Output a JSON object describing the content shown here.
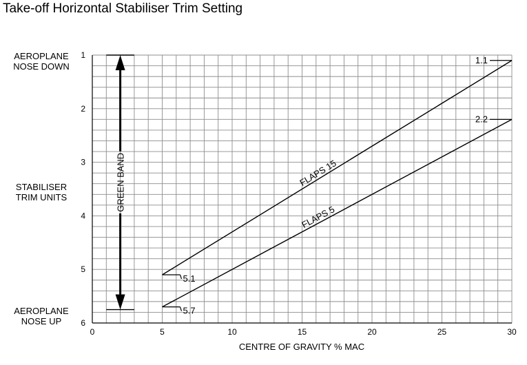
{
  "chart_data": {
    "type": "line",
    "title": "Take-off Horizontal Stabiliser Trim Setting",
    "xlabel": "CENTRE OF GRAVITY  % MAC",
    "ylabel_lines": [
      "STABILISER",
      "TRIM UNITS"
    ],
    "top_label_lines": [
      "AEROPLANE",
      "NOSE DOWN"
    ],
    "bottom_label_lines": [
      "AEROPLANE",
      "NOSE UP"
    ],
    "xlim": [
      0,
      30
    ],
    "ylim": [
      1,
      6
    ],
    "y_inverted": true,
    "grid": true,
    "xticks": [
      "0",
      "5",
      "10",
      "15",
      "20",
      "25",
      "30"
    ],
    "yticks": [
      "1",
      "2",
      "3",
      "4",
      "5",
      "6"
    ],
    "series": [
      {
        "name": "FLAPS 15",
        "x": [
          5,
          30
        ],
        "y": [
          5.1,
          1.1
        ],
        "end_labels": [
          "5.1",
          "1.1"
        ]
      },
      {
        "name": "FLAPS 5",
        "x": [
          5,
          30
        ],
        "y": [
          5.7,
          2.2
        ],
        "end_labels": [
          "5.7",
          "2.2"
        ]
      }
    ],
    "green_band": {
      "label": "GREEN BAND",
      "x": 2,
      "y_range": [
        1,
        5.75
      ]
    }
  }
}
